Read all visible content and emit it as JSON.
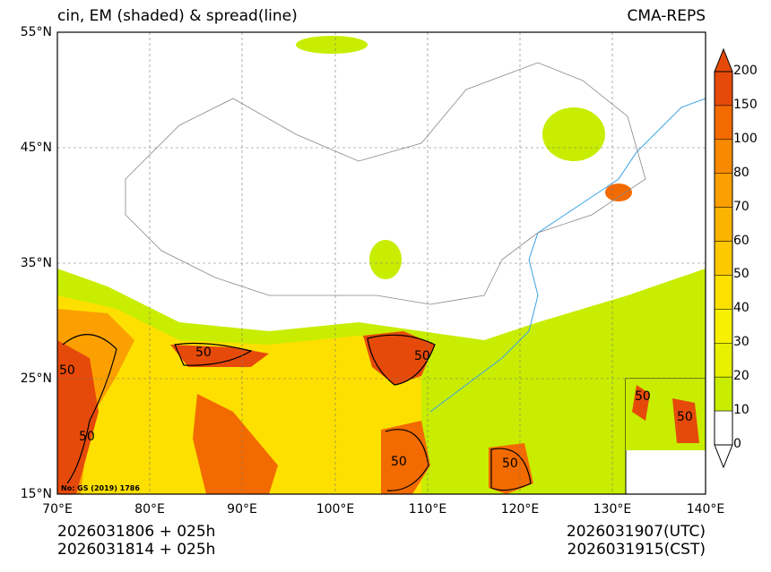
{
  "title_left": "cin, EM (shaded) & spread(line)",
  "title_right": "CMA-REPS",
  "lat_labels": [
    "55°N",
    "45°N",
    "35°N",
    "25°N",
    "15°N"
  ],
  "lon_labels": [
    "70°E",
    "80°E",
    "90°E",
    "100°E",
    "110°E",
    "120°E",
    "130°E",
    "140°E"
  ],
  "colorbar_labels": [
    "200",
    "150",
    "100",
    "80",
    "70",
    "60",
    "50",
    "40",
    "30",
    "20",
    "10",
    "0"
  ],
  "colorbar_colors": [
    "#e64a0a",
    "#f26a00",
    "#f88a00",
    "#fba000",
    "#fcb400",
    "#fdc800",
    "#fde000",
    "#f7f000",
    "#e6f000",
    "#c8ed00",
    "#ffffff"
  ],
  "contour_labels": [
    "50",
    "50",
    "50",
    "50",
    "50",
    "50",
    "50",
    "50"
  ],
  "credit": "No: GS (2019) 1786",
  "time_left_1": "2026031806  +  025h",
  "time_left_2": "2026031814  +  025h",
  "time_right_1": "2026031907(UTC)",
  "time_right_2": "2026031915(CST)"
}
